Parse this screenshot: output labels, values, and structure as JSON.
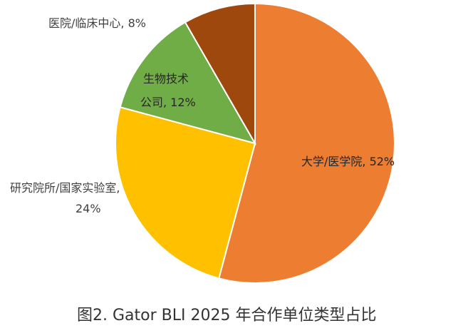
{
  "chart_data": {
    "type": "pie",
    "title": "图2. Gator BLI 2025 年合作单位类型占比",
    "start": "top",
    "direction": "clockwise",
    "slices": [
      {
        "label": "大学/医学院",
        "value": 52,
        "display": "大学/医学院, 52%",
        "color": "#ED7D31"
      },
      {
        "label": "研究院所/国家实验室",
        "value": 24,
        "display_line1": "研究院所/国家实验室,",
        "display_line2": "24%",
        "color": "#FFC000"
      },
      {
        "label": "生物技术公司",
        "value": 12,
        "display_line1": "生物技术",
        "display_line2": "公司, 12%",
        "color": "#70AD47"
      },
      {
        "label": "医院/临床中心",
        "value": 8,
        "display": "医院/临床中心, 8%",
        "color": "#9E480E"
      }
    ]
  }
}
